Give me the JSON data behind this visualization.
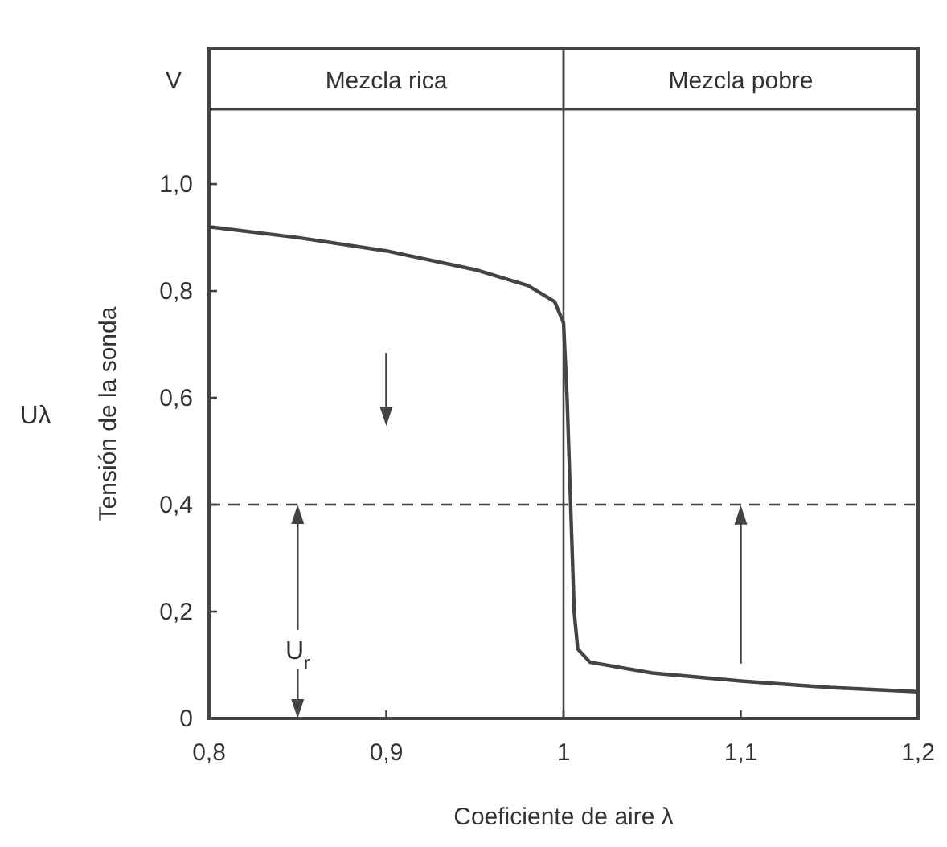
{
  "chart_data": {
    "type": "line",
    "xlabel": "Coeficiente de aire λ",
    "ylabel": "Tensión de la sonda",
    "x": [
      0.8,
      0.85,
      0.9,
      0.95,
      0.98,
      0.995,
      1.0,
      1.002,
      1.004,
      1.006,
      1.008,
      1.015,
      1.05,
      1.1,
      1.15,
      1.2
    ],
    "series": [
      {
        "color": "#444444",
        "values": [
          0.92,
          0.9,
          0.875,
          0.84,
          0.81,
          0.78,
          0.74,
          0.6,
          0.4,
          0.2,
          0.13,
          0.105,
          0.085,
          0.07,
          0.058,
          0.05
        ]
      }
    ],
    "xlim": [
      0.8,
      1.2
    ],
    "ylim": [
      0,
      1.14
    ],
    "xticks": [
      {
        "value": 0.8,
        "label": "0,8"
      },
      {
        "value": 0.9,
        "label": "0,9"
      },
      1,
      {
        "value": 1.1,
        "label": "1,1"
      },
      {
        "value": 1.2,
        "label": "1,2"
      }
    ],
    "yticks": [
      0,
      {
        "value": 0.2,
        "label": "0,2"
      },
      {
        "value": 0.4,
        "label": "0,4"
      },
      {
        "value": 0.6,
        "label": "0,6"
      },
      {
        "value": 0.8,
        "label": "0,8"
      },
      {
        "value": 1.0,
        "label": "1,0"
      }
    ],
    "ref_lines": [
      {
        "axis": "x",
        "value": 1
      },
      {
        "axis": "y",
        "value": 0.4,
        "line_style": "dashed"
      }
    ],
    "annotations": [
      "V",
      "Mezcla rica",
      "Mezcla pobre",
      "Uλ",
      "U$_{r}$"
    ],
    "grid": false,
    "marker": "none",
    "line_style": "solid"
  }
}
